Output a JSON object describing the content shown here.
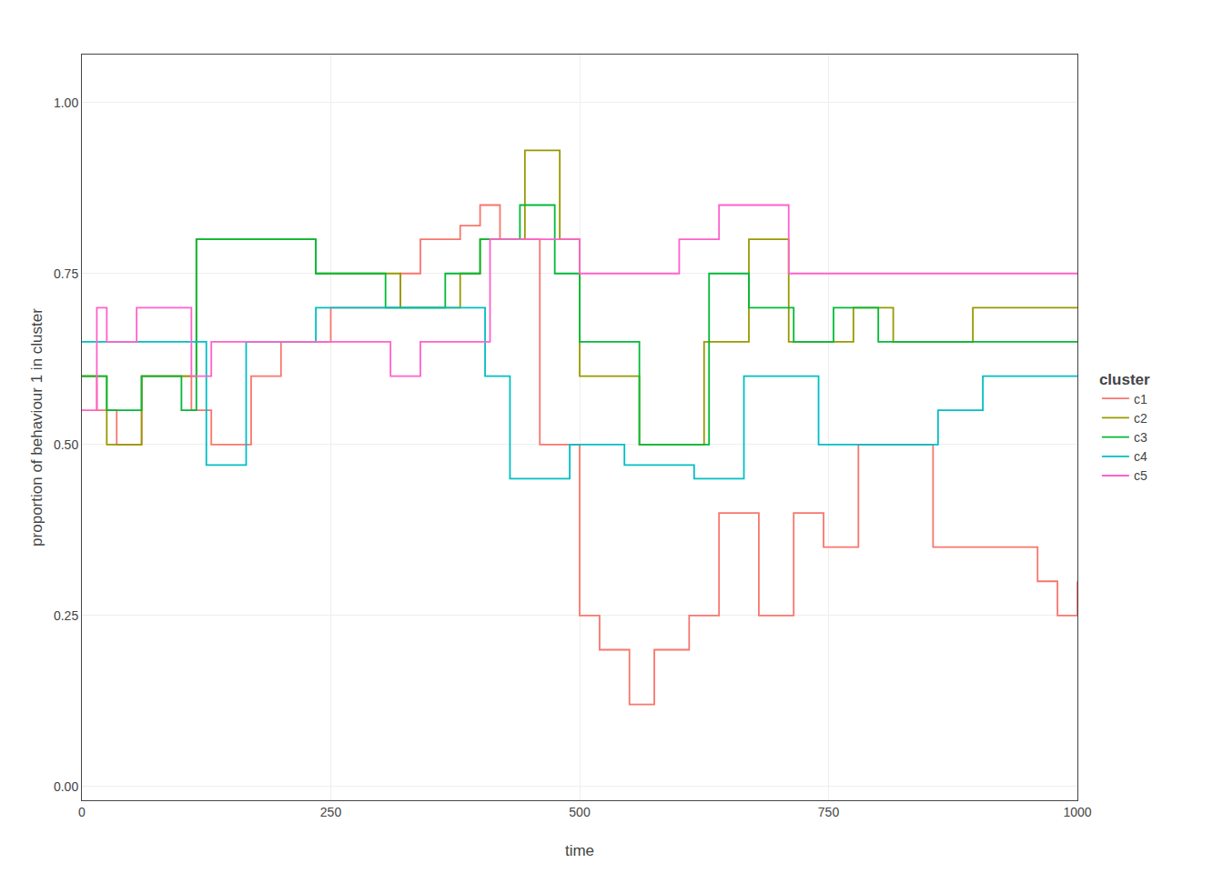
{
  "chart_data": {
    "type": "step",
    "xlabel": "time",
    "ylabel": "proportion of behaviour 1 in cluster",
    "legend_title": "cluster",
    "xlim": [
      0,
      1000
    ],
    "ylim": [
      -0.02,
      1.07
    ],
    "xticks": [
      0,
      250,
      500,
      750,
      1000
    ],
    "yticks": [
      {
        "value": 0,
        "label": "0.00"
      },
      0.25,
      {
        "value": 0.5,
        "label": "0.50"
      },
      0.75,
      {
        "value": 1,
        "label": "1.00"
      }
    ],
    "grid": true,
    "series": [
      {
        "name": "c1",
        "color": "#F8766D",
        "x": [
          0,
          15,
          25,
          35,
          50,
          60,
          75,
          90,
          110,
          130,
          150,
          170,
          200,
          220,
          250,
          270,
          300,
          320,
          340,
          360,
          380,
          400,
          420,
          440,
          460,
          480,
          500,
          510,
          520,
          535,
          550,
          560,
          575,
          590,
          610,
          625,
          640,
          660,
          680,
          700,
          715,
          730,
          745,
          760,
          780,
          800,
          820,
          840,
          855,
          865,
          880,
          900,
          920,
          940,
          960,
          980,
          1000
        ],
        "values": [
          0.6,
          0.55,
          0.55,
          0.5,
          0.5,
          0.6,
          0.6,
          0.6,
          0.55,
          0.5,
          0.5,
          0.6,
          0.65,
          0.65,
          0.7,
          0.7,
          0.7,
          0.75,
          0.8,
          0.8,
          0.82,
          0.85,
          0.8,
          0.8,
          0.5,
          0.5,
          0.25,
          0.25,
          0.2,
          0.2,
          0.12,
          0.12,
          0.2,
          0.2,
          0.25,
          0.25,
          0.4,
          0.4,
          0.25,
          0.25,
          0.4,
          0.4,
          0.35,
          0.35,
          0.5,
          0.5,
          0.5,
          0.5,
          0.35,
          0.35,
          0.35,
          0.35,
          0.35,
          0.35,
          0.3,
          0.25,
          0.3
        ]
      },
      {
        "name": "c2",
        "color": "#999900",
        "x": [
          0,
          15,
          25,
          50,
          60,
          100,
          115,
          130,
          155,
          175,
          195,
          215,
          235,
          260,
          280,
          305,
          320,
          345,
          365,
          380,
          400,
          430,
          445,
          460,
          480,
          500,
          520,
          560,
          575,
          600,
          625,
          650,
          670,
          690,
          710,
          730,
          755,
          775,
          800,
          815,
          835,
          855,
          875,
          895,
          915,
          935,
          960,
          980,
          1000
        ],
        "values": [
          0.6,
          0.6,
          0.5,
          0.5,
          0.6,
          0.6,
          0.8,
          0.8,
          0.8,
          0.8,
          0.8,
          0.8,
          0.75,
          0.75,
          0.75,
          0.75,
          0.7,
          0.7,
          0.7,
          0.75,
          0.8,
          0.8,
          0.93,
          0.93,
          0.8,
          0.6,
          0.6,
          0.5,
          0.5,
          0.5,
          0.65,
          0.65,
          0.8,
          0.8,
          0.65,
          0.65,
          0.65,
          0.7,
          0.7,
          0.65,
          0.65,
          0.65,
          0.65,
          0.7,
          0.7,
          0.7,
          0.7,
          0.7,
          0.7
        ]
      },
      {
        "name": "c3",
        "color": "#00BA38",
        "x": [
          0,
          15,
          25,
          50,
          60,
          100,
          115,
          130,
          155,
          175,
          195,
          215,
          235,
          260,
          280,
          305,
          325,
          350,
          365,
          385,
          400,
          420,
          440,
          455,
          475,
          500,
          520,
          560,
          580,
          605,
          630,
          655,
          670,
          690,
          715,
          730,
          755,
          775,
          800,
          820,
          840,
          865,
          885,
          905,
          925,
          945,
          965,
          985,
          1000
        ],
        "values": [
          0.6,
          0.6,
          0.55,
          0.55,
          0.6,
          0.55,
          0.8,
          0.8,
          0.8,
          0.8,
          0.8,
          0.8,
          0.75,
          0.75,
          0.75,
          0.7,
          0.7,
          0.7,
          0.75,
          0.75,
          0.8,
          0.8,
          0.85,
          0.85,
          0.75,
          0.65,
          0.65,
          0.5,
          0.5,
          0.5,
          0.75,
          0.75,
          0.7,
          0.7,
          0.65,
          0.65,
          0.7,
          0.7,
          0.65,
          0.65,
          0.65,
          0.65,
          0.65,
          0.65,
          0.65,
          0.65,
          0.65,
          0.65,
          0.65
        ]
      },
      {
        "name": "c4",
        "color": "#00BFC4",
        "x": [
          0,
          15,
          50,
          60,
          100,
          125,
          145,
          165,
          185,
          205,
          235,
          265,
          290,
          310,
          335,
          360,
          385,
          405,
          430,
          450,
          470,
          490,
          515,
          545,
          570,
          590,
          615,
          640,
          665,
          685,
          710,
          740,
          760,
          785,
          810,
          835,
          860,
          880,
          905,
          925,
          955,
          980,
          1000
        ],
        "values": [
          0.65,
          0.65,
          0.65,
          0.65,
          0.65,
          0.47,
          0.47,
          0.65,
          0.65,
          0.65,
          0.7,
          0.7,
          0.7,
          0.7,
          0.7,
          0.7,
          0.7,
          0.6,
          0.45,
          0.45,
          0.45,
          0.5,
          0.5,
          0.47,
          0.47,
          0.47,
          0.45,
          0.45,
          0.6,
          0.6,
          0.6,
          0.5,
          0.5,
          0.5,
          0.5,
          0.5,
          0.55,
          0.55,
          0.6,
          0.6,
          0.6,
          0.6,
          0.6
        ]
      },
      {
        "name": "c5",
        "color": "#FF61CC",
        "x": [
          0,
          15,
          25,
          40,
          55,
          70,
          90,
          110,
          130,
          145,
          165,
          185,
          210,
          235,
          260,
          285,
          310,
          340,
          365,
          390,
          410,
          430,
          450,
          475,
          500,
          520,
          545,
          565,
          580,
          600,
          620,
          640,
          660,
          685,
          710,
          735,
          760,
          785,
          805,
          820,
          840,
          855,
          875,
          895,
          915,
          940,
          960,
          985,
          1000
        ],
        "values": [
          0.55,
          0.7,
          0.65,
          0.65,
          0.7,
          0.7,
          0.7,
          0.6,
          0.65,
          0.65,
          0.65,
          0.65,
          0.65,
          0.65,
          0.65,
          0.65,
          0.6,
          0.65,
          0.65,
          0.65,
          0.8,
          0.8,
          0.8,
          0.8,
          0.75,
          0.75,
          0.75,
          0.75,
          0.75,
          0.8,
          0.8,
          0.85,
          0.85,
          0.85,
          0.75,
          0.75,
          0.75,
          0.75,
          0.75,
          0.75,
          0.75,
          0.75,
          0.75,
          0.75,
          0.75,
          0.75,
          0.75,
          0.75,
          0.75
        ]
      }
    ]
  }
}
